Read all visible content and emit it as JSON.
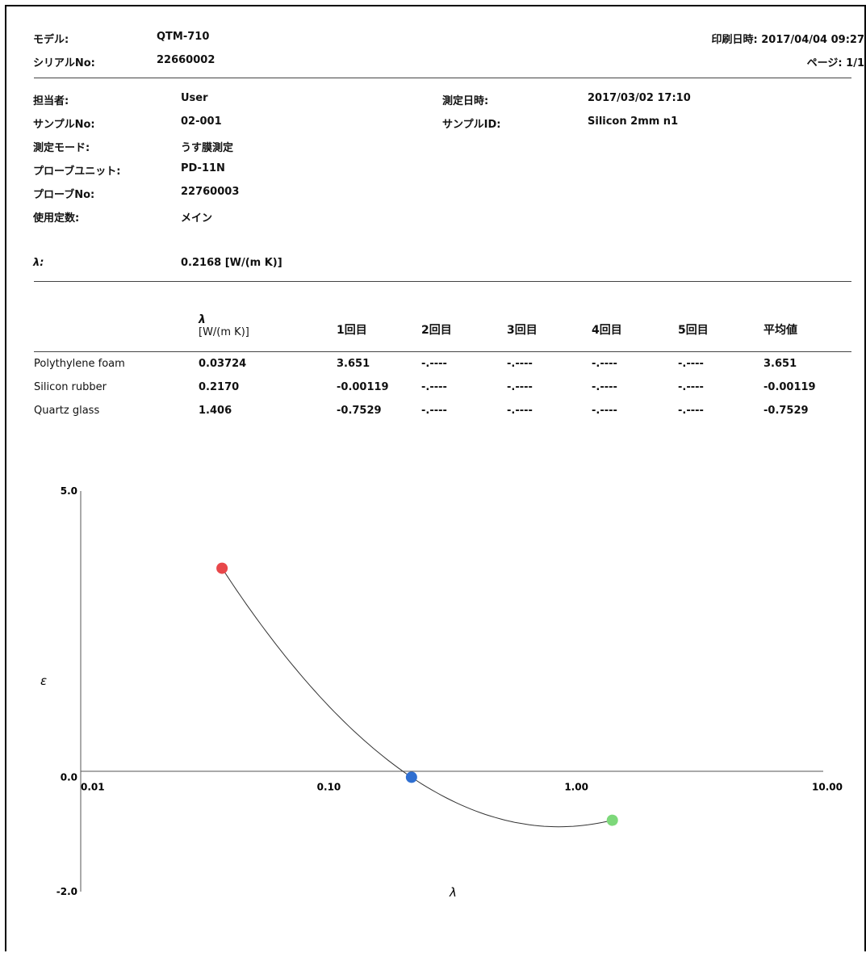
{
  "header": {
    "model_label": "モデル:",
    "model_value": "QTM-710",
    "serial_label": "シリアルNo:",
    "serial_value": "22660002",
    "print_label": "印刷日時:",
    "print_value": "2017/04/04 09:27",
    "page_label": "ページ:",
    "page_value": "1/1"
  },
  "info": {
    "operator_label": "担当者:",
    "operator_value": "User",
    "sample_no_label": "サンプルNo:",
    "sample_no_value": "02-001",
    "mode_label": "測定モード:",
    "mode_value": "うす膜測定",
    "probe_unit_label": "プローブユニット:",
    "probe_unit_value": "PD-11N",
    "probe_no_label": "プローブNo:",
    "probe_no_value": "22760003",
    "constant_label": "使用定数:",
    "constant_value": "メイン",
    "measured_label": "測定日時:",
    "measured_value": "2017/03/02 17:10",
    "sample_id_label": "サンプルID:",
    "sample_id_value": "Silicon 2mm n1",
    "lambda_label": "λ:",
    "lambda_value": "0.2168  [W/(m K)]"
  },
  "table": {
    "headers": [
      "λ",
      "[W/(m K)]",
      "1回目",
      "2回目",
      "3回目",
      "4回目",
      "5回目",
      "平均値"
    ],
    "rows": [
      [
        "Polythylene foam",
        "0.03724",
        "3.651",
        "-.----",
        "-.----",
        "-.----",
        "-.----",
        "3.651"
      ],
      [
        "Silicon rubber",
        "0.2170",
        "-0.00119",
        "-.----",
        "-.----",
        "-.----",
        "-.----",
        "-0.00119"
      ],
      [
        "Quartz glass",
        "1.406",
        "-0.7529",
        "-.----",
        "-.----",
        "-.----",
        "-.----",
        "-0.7529"
      ]
    ]
  },
  "chart_data": {
    "type": "scatter",
    "xscale": "log",
    "xlabel": "λ",
    "ylabel": "ε",
    "xlim": [
      0.01,
      10.0
    ],
    "ylim": [
      -2.0,
      5.0
    ],
    "x_ticks": [
      "0.01",
      "0.10",
      "1.00",
      "10.00"
    ],
    "y_ticks": [
      "5.0",
      "0.0",
      "-2.0"
    ],
    "points": [
      {
        "x": 0.03724,
        "y": 3.651,
        "color": "#e8474a"
      },
      {
        "x": 0.217,
        "y": -0.00119,
        "color": "#2f6fd1"
      },
      {
        "x": 1.406,
        "y": -0.7529,
        "color": "#7dd87a"
      }
    ],
    "curve": true,
    "grid": false
  }
}
